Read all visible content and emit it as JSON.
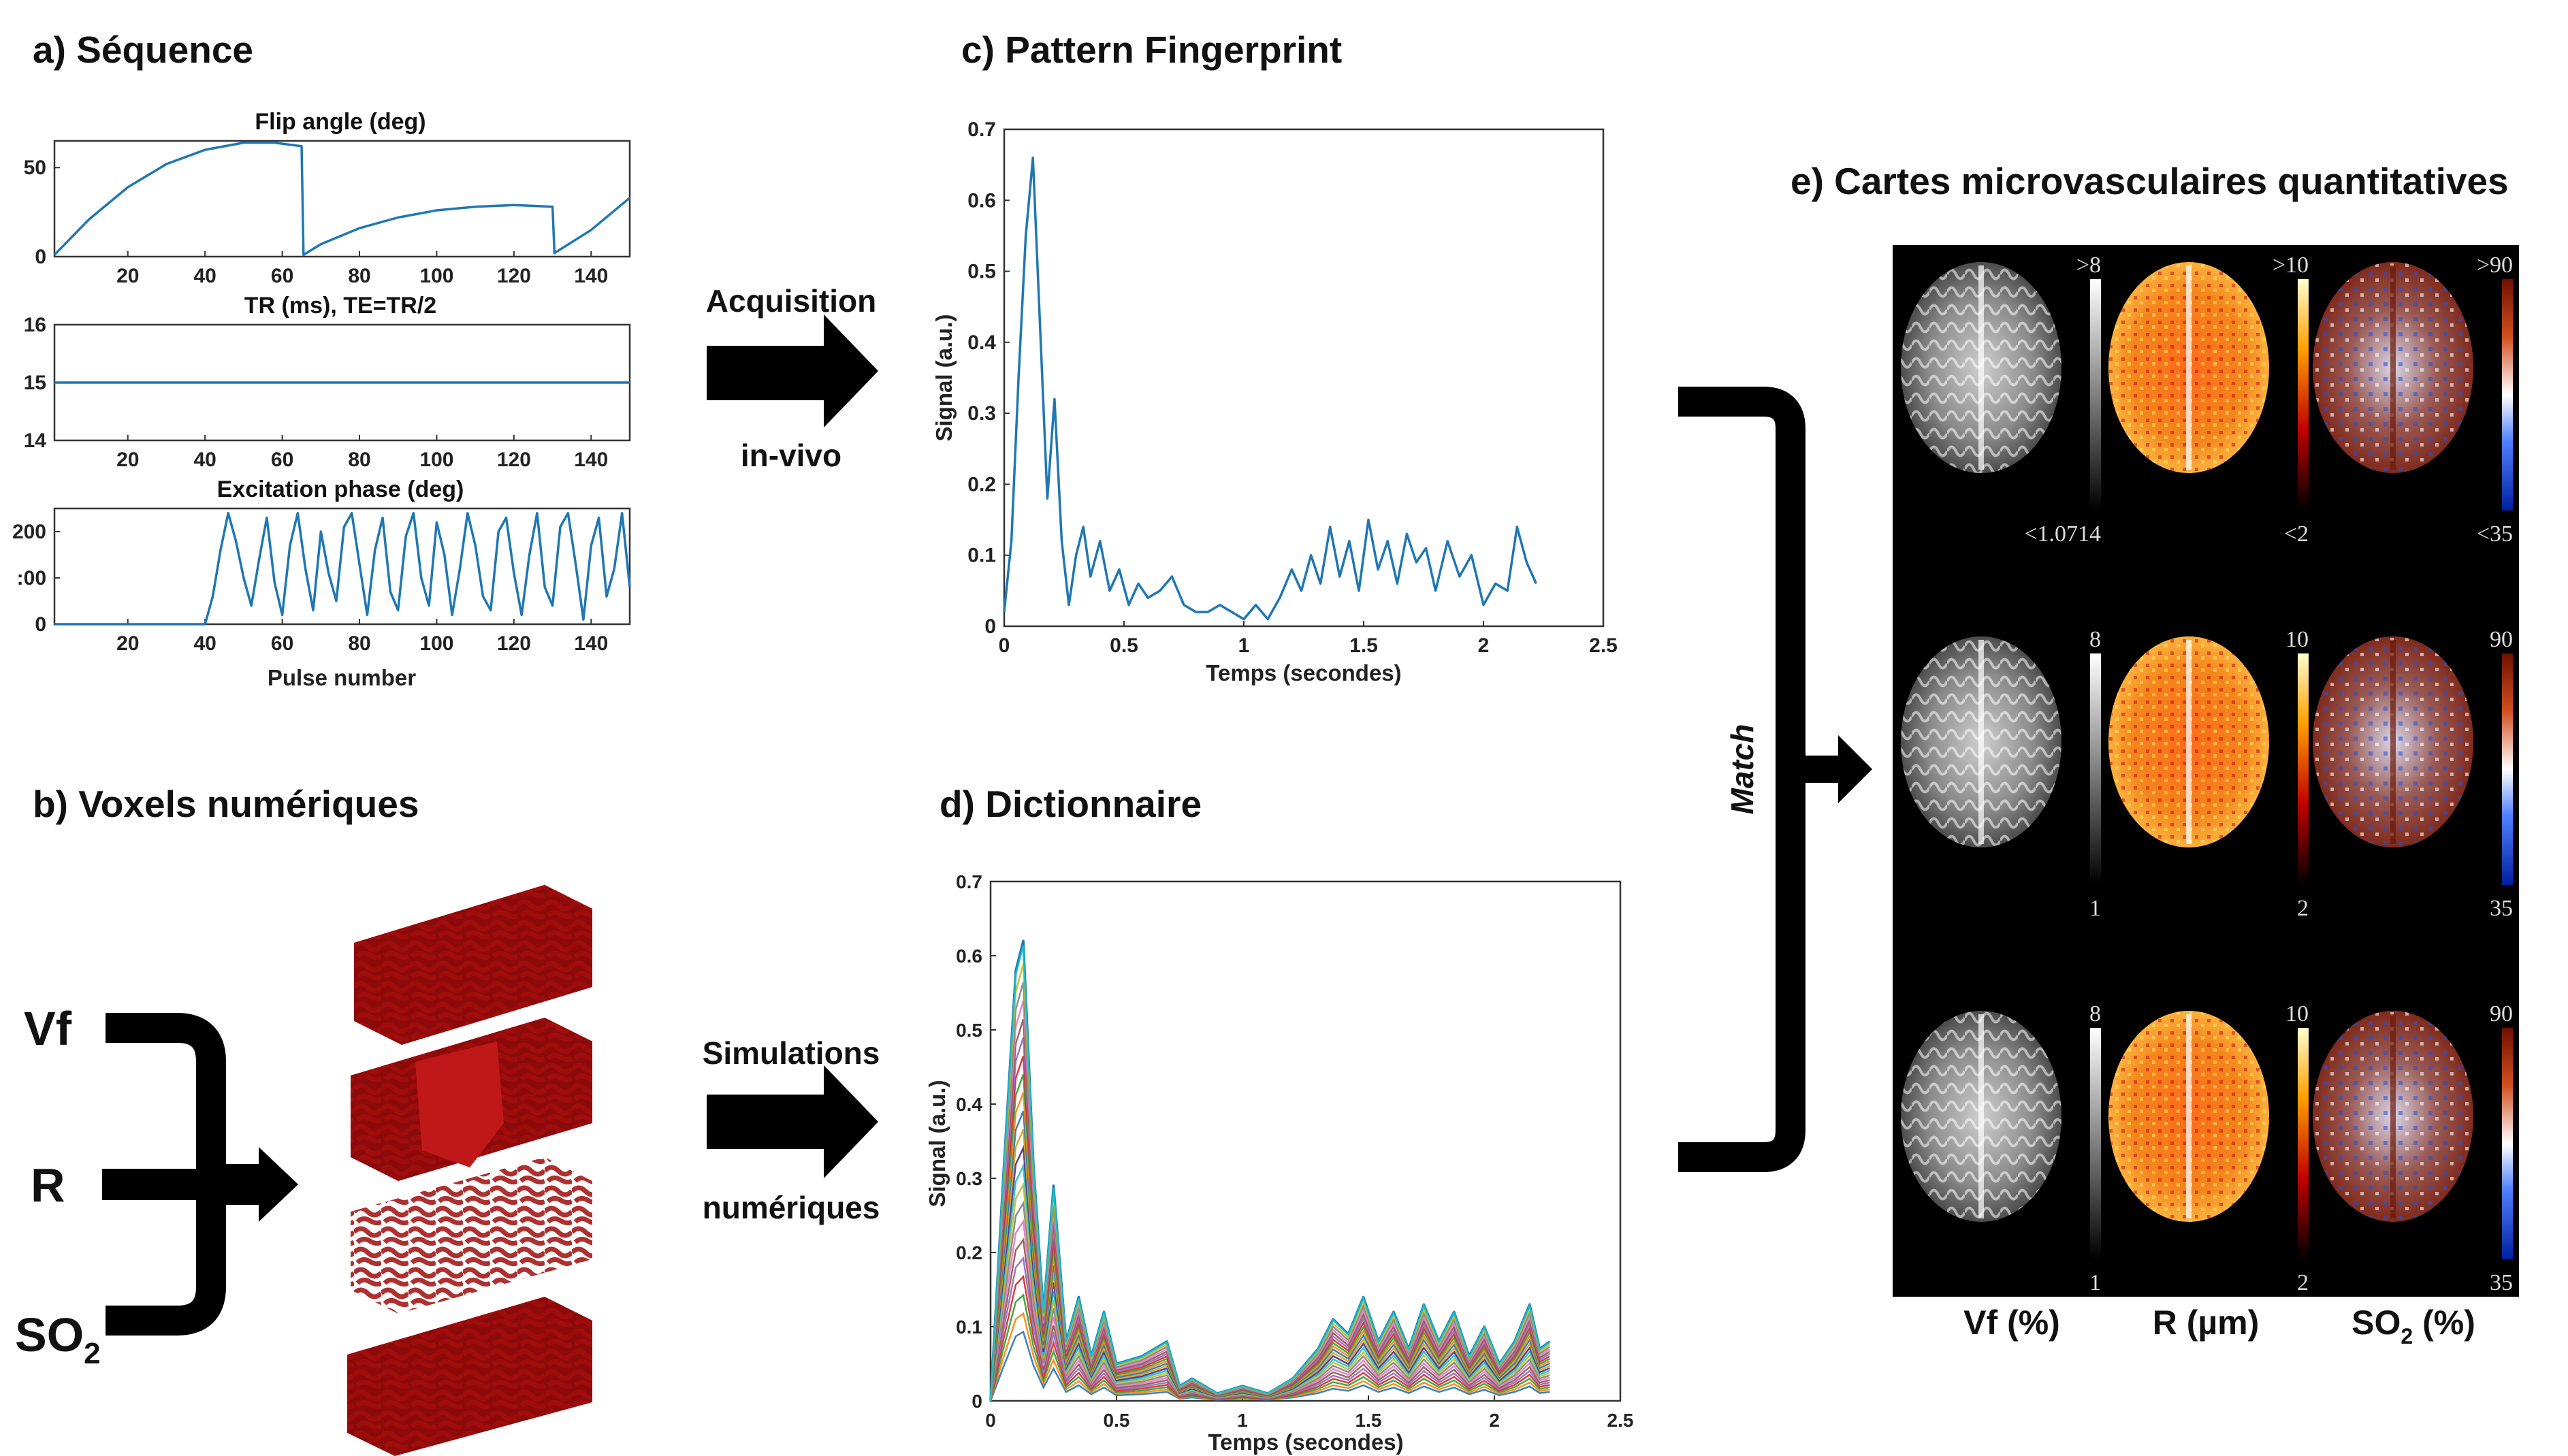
{
  "panels": {
    "a_title": "a) Séquence",
    "b_title": "b) Voxels numériques",
    "c_title": "c) Pattern Fingerprint",
    "d_title": "d) Dictionnaire",
    "e_title": "e) Cartes microvasculaires quantitatives"
  },
  "arrows": {
    "acquisition_line1": "Acquisition",
    "acquisition_line2": "in-vivo",
    "simulation_line1": "Simulations",
    "simulation_line2": "numériques",
    "match": "Match"
  },
  "voxel_inputs": {
    "vf": "Vf",
    "r": "R",
    "so2_main": "SO",
    "so2_sub": "2"
  },
  "maps": {
    "col_labels": [
      "Vf (%)",
      "R (µm)",
      "SO"
    ],
    "so2_sub": "2",
    "so2_unit": " (%)",
    "colorbars": [
      {
        "top": [
          ">8",
          ">10",
          ">90"
        ],
        "bottom": [
          "<1.0714",
          "<2",
          "<35"
        ]
      },
      {
        "top": [
          "8",
          "10",
          "90"
        ],
        "bottom": [
          "1",
          "2",
          "35"
        ]
      },
      {
        "top": [
          "8",
          "10",
          "90"
        ],
        "bottom": [
          "1",
          "2",
          "35"
        ]
      }
    ]
  },
  "chart_data": [
    {
      "type": "line",
      "title": "Flip angle (deg)",
      "xlabel": "",
      "ylabel": "",
      "xlim": [
        1,
        150
      ],
      "ylim": [
        0,
        65
      ],
      "x_ticks": [
        "20",
        "40",
        "60",
        "80",
        "100",
        "120",
        "140"
      ],
      "y_ticks": [
        "0",
        "50"
      ],
      "series": [
        {
          "x": [
            1,
            10,
            20,
            30,
            40,
            50,
            58,
            65,
            65.5,
            70,
            80,
            90,
            100,
            110,
            120,
            130,
            130.5,
            140,
            150
          ],
          "values": [
            1,
            21,
            39,
            52,
            60,
            64,
            64,
            62,
            1,
            7,
            16,
            22,
            26,
            28,
            29,
            28,
            2,
            15,
            33
          ]
        }
      ]
    },
    {
      "type": "line",
      "title": "TR (ms), TE=TR/2",
      "xlabel": "",
      "ylabel": "",
      "xlim": [
        1,
        150
      ],
      "ylim": [
        14,
        16
      ],
      "x_ticks": [
        "20",
        "40",
        "60",
        "80",
        "100",
        "120",
        "140"
      ],
      "y_ticks": [
        "14",
        "15",
        "16"
      ],
      "series": [
        {
          "x": [
            1,
            150
          ],
          "values": [
            15,
            15
          ]
        }
      ]
    },
    {
      "type": "line",
      "title": "Excitation phase (deg)",
      "xlabel": "Pulse number",
      "ylabel": "",
      "xlim": [
        1,
        150
      ],
      "ylim": [
        0,
        250
      ],
      "x_ticks": [
        "20",
        "40",
        "60",
        "80",
        "100",
        "120",
        "140"
      ],
      "y_ticks": [
        "0",
        ":00",
        "200"
      ],
      "series": [
        {
          "x": [
            1,
            40,
            42,
            44,
            46,
            48,
            50,
            52,
            54,
            56,
            58,
            60,
            62,
            64,
            66,
            68,
            70,
            72,
            74,
            76,
            78,
            80,
            82,
            84,
            86,
            88,
            90,
            92,
            94,
            96,
            98,
            100,
            102,
            104,
            106,
            108,
            110,
            112,
            114,
            116,
            118,
            120,
            122,
            124,
            126,
            128,
            130,
            132,
            134,
            136,
            138,
            140,
            142,
            144,
            146,
            148,
            150
          ],
          "values": [
            0,
            0,
            60,
            160,
            240,
            180,
            100,
            40,
            140,
            230,
            90,
            20,
            170,
            240,
            120,
            30,
            200,
            110,
            50,
            210,
            240,
            130,
            20,
            160,
            230,
            70,
            30,
            190,
            240,
            100,
            40,
            220,
            150,
            20,
            120,
            240,
            170,
            60,
            30,
            200,
            230,
            110,
            20,
            150,
            240,
            80,
            40,
            210,
            240,
            130,
            10,
            170,
            230,
            60,
            120,
            240,
            80
          ]
        }
      ]
    },
    {
      "type": "line",
      "title": "",
      "xlabel": "Temps (secondes)",
      "ylabel": "Signal (a.u.)",
      "xlim": [
        0,
        2.5
      ],
      "ylim": [
        0,
        0.7
      ],
      "x_ticks": [
        "0",
        "0.5",
        "1",
        "1.5",
        "2",
        "2.5"
      ],
      "y_ticks": [
        "0",
        "0.1",
        "0.2",
        "0.3",
        "0.4",
        "0.5",
        "0.6",
        "0.7"
      ],
      "series": [
        {
          "x": [
            0,
            0.03,
            0.06,
            0.09,
            0.12,
            0.15,
            0.18,
            0.21,
            0.24,
            0.27,
            0.3,
            0.33,
            0.36,
            0.4,
            0.44,
            0.48,
            0.52,
            0.56,
            0.6,
            0.65,
            0.7,
            0.75,
            0.8,
            0.85,
            0.9,
            0.95,
            1.0,
            1.05,
            1.1,
            1.15,
            1.2,
            1.24,
            1.28,
            1.32,
            1.36,
            1.4,
            1.44,
            1.48,
            1.52,
            1.56,
            1.6,
            1.64,
            1.68,
            1.72,
            1.76,
            1.8,
            1.85,
            1.9,
            1.95,
            2.0,
            2.05,
            2.1,
            2.14,
            2.18,
            2.22
          ],
          "values": [
            0.02,
            0.12,
            0.35,
            0.55,
            0.66,
            0.42,
            0.18,
            0.32,
            0.12,
            0.03,
            0.1,
            0.14,
            0.07,
            0.12,
            0.05,
            0.08,
            0.03,
            0.06,
            0.04,
            0.05,
            0.07,
            0.03,
            0.02,
            0.02,
            0.03,
            0.02,
            0.01,
            0.03,
            0.01,
            0.04,
            0.08,
            0.05,
            0.1,
            0.06,
            0.14,
            0.07,
            0.12,
            0.05,
            0.15,
            0.08,
            0.12,
            0.06,
            0.13,
            0.09,
            0.11,
            0.05,
            0.12,
            0.07,
            0.1,
            0.03,
            0.06,
            0.05,
            0.14,
            0.09,
            0.06
          ]
        }
      ]
    },
    {
      "type": "line",
      "title": "",
      "xlabel": "Temps (secondes)",
      "ylabel": "Signal (a.u.)",
      "xlim": [
        0,
        2.5
      ],
      "ylim": [
        0,
        0.7
      ],
      "x_ticks": [
        "0",
        "0.5",
        "1",
        "1.5",
        "2",
        "2.5"
      ],
      "y_ticks": [
        "0",
        "0.1",
        "0.2",
        "0.3",
        "0.4",
        "0.5",
        "0.6",
        "0.7"
      ],
      "series": [
        {
          "x": [
            0,
            0.05,
            0.1,
            0.13,
            0.17,
            0.21,
            0.25,
            0.3,
            0.35,
            0.4,
            0.45,
            0.5,
            0.6,
            0.7,
            0.75,
            0.8,
            0.9,
            1.0,
            1.1,
            1.2,
            1.3,
            1.36,
            1.42,
            1.48,
            1.54,
            1.6,
            1.66,
            1.72,
            1.78,
            1.84,
            1.9,
            1.96,
            2.02,
            2.08,
            2.14,
            2.18,
            2.22
          ],
          "values": [
            0.0,
            0.3,
            0.58,
            0.62,
            0.32,
            0.12,
            0.29,
            0.08,
            0.14,
            0.06,
            0.12,
            0.05,
            0.06,
            0.08,
            0.02,
            0.03,
            0.01,
            0.02,
            0.01,
            0.03,
            0.07,
            0.11,
            0.09,
            0.14,
            0.08,
            0.12,
            0.07,
            0.13,
            0.08,
            0.12,
            0.06,
            0.1,
            0.05,
            0.08,
            0.13,
            0.07,
            0.08
          ]
        }
      ]
    }
  ]
}
